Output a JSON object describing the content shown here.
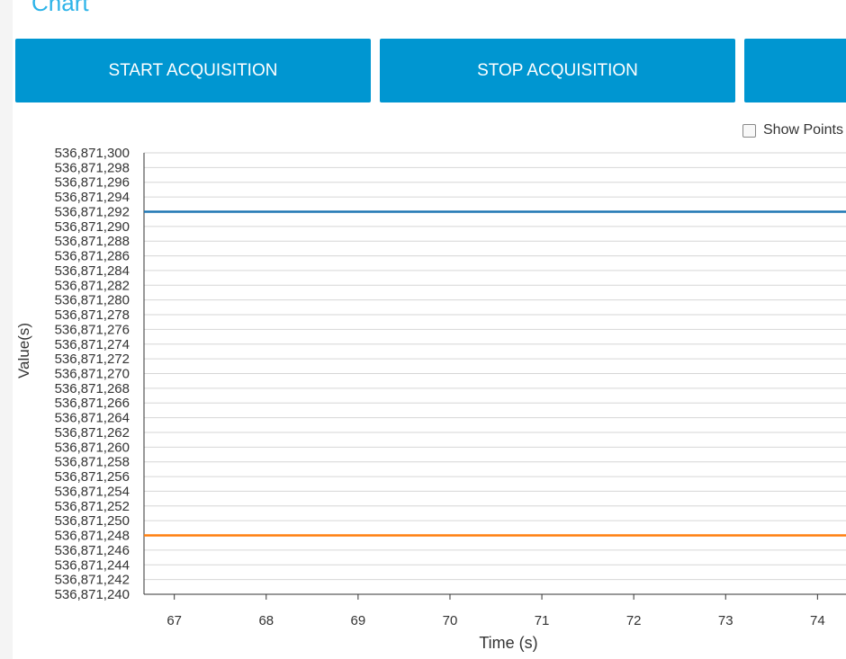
{
  "header": {
    "title": "Chart"
  },
  "buttons": [
    "START ACQUISITION",
    "STOP ACQUISITION"
  ],
  "checkbox": {
    "label": "Show Points",
    "checked": false
  },
  "chart_data": {
    "type": "line",
    "x_label": "Time (s)",
    "y_label": "Value(s)",
    "x": [
      66.67,
      74.31
    ],
    "series": [
      {
        "color": "#1f77b4",
        "values": [
          536871292,
          536871292
        ]
      },
      {
        "color": "#ff7f0e",
        "values": [
          536871248,
          536871248
        ]
      }
    ],
    "xlim": [
      66.67,
      74.31
    ],
    "xticks": [
      67,
      68,
      69,
      70,
      71,
      72,
      73,
      74
    ],
    "ylim": [
      536871240,
      536871300
    ],
    "yticks": [
      {
        "value": 536871240,
        "label": "536,871,240"
      },
      {
        "value": 536871242,
        "label": "536,871,242"
      },
      {
        "value": 536871244,
        "label": "536,871,244"
      },
      {
        "value": 536871246,
        "label": "536,871,246"
      },
      {
        "value": 536871248,
        "label": "536,871,248"
      },
      {
        "value": 536871250,
        "label": "536,871,250"
      },
      {
        "value": 536871252,
        "label": "536,871,252"
      },
      {
        "value": 536871254,
        "label": "536,871,254"
      },
      {
        "value": 536871256,
        "label": "536,871,256"
      },
      {
        "value": 536871258,
        "label": "536,871,258"
      },
      {
        "value": 536871260,
        "label": "536,871,260"
      },
      {
        "value": 536871262,
        "label": "536,871,262"
      },
      {
        "value": 536871264,
        "label": "536,871,264"
      },
      {
        "value": 536871266,
        "label": "536,871,266"
      },
      {
        "value": 536871268,
        "label": "536,871,268"
      },
      {
        "value": 536871270,
        "label": "536,871,270"
      },
      {
        "value": 536871272,
        "label": "536,871,272"
      },
      {
        "value": 536871274,
        "label": "536,871,274"
      },
      {
        "value": 536871276,
        "label": "536,871,276"
      },
      {
        "value": 536871278,
        "label": "536,871,278"
      },
      {
        "value": 536871280,
        "label": "536,871,280"
      },
      {
        "value": 536871282,
        "label": "536,871,282"
      },
      {
        "value": 536871284,
        "label": "536,871,284"
      },
      {
        "value": 536871286,
        "label": "536,871,286"
      },
      {
        "value": 536871288,
        "label": "536,871,288"
      },
      {
        "value": 536871290,
        "label": "536,871,290"
      },
      {
        "value": 536871292,
        "label": "536,871,292"
      },
      {
        "value": 536871294,
        "label": "536,871,294"
      },
      {
        "value": 536871296,
        "label": "536,871,296"
      },
      {
        "value": 536871298,
        "label": "536,871,298"
      },
      {
        "value": 536871300,
        "label": "536,871,300"
      }
    ],
    "grid": true
  }
}
